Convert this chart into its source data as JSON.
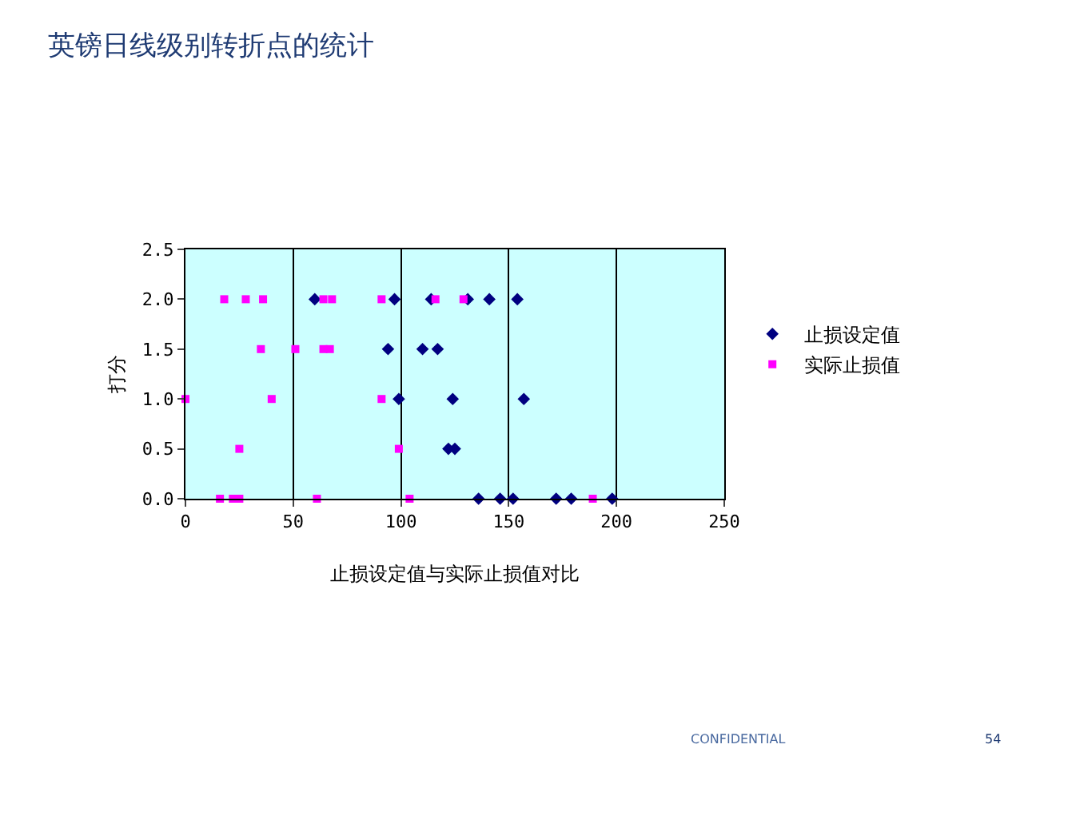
{
  "chart_data": {
    "type": "scatter",
    "title": "英镑日线级别转折点的统计",
    "xlabel": "止损设定值与实际止损值对比",
    "ylabel": "打分",
    "series": [
      {
        "name": "止损设定值",
        "color": "#000080",
        "marker": "diamond",
        "x": [
          60,
          97,
          114,
          131,
          141,
          154,
          94,
          110,
          117,
          99,
          124,
          157,
          122,
          125,
          136,
          146,
          152,
          172,
          179,
          198
        ],
        "values": [
          2,
          2,
          2,
          2,
          2,
          2,
          1.5,
          1.5,
          1.5,
          1,
          1,
          1,
          0.5,
          0.5,
          0,
          0,
          0,
          0,
          0,
          0
        ]
      },
      {
        "name": "实际止损值",
        "color": "#ff00ff",
        "marker": "square",
        "x": [
          18,
          28,
          36,
          64,
          68,
          91,
          116,
          129,
          35,
          51,
          64,
          67,
          0,
          40,
          91,
          25,
          99,
          16,
          22,
          25,
          61,
          104,
          189
        ],
        "values": [
          2,
          2,
          2,
          2,
          2,
          2,
          2,
          2,
          1.5,
          1.5,
          1.5,
          1.5,
          1,
          1,
          1,
          0.5,
          0.5,
          0,
          0,
          0,
          0,
          0,
          0
        ]
      }
    ],
    "xlim": [
      0,
      250
    ],
    "ylim": [
      0,
      2.5
    ],
    "xticks": [
      0,
      50,
      100,
      150,
      200,
      250
    ],
    "yticks": [
      {
        "value": 0,
        "label": "0.0"
      },
      {
        "value": 0.5,
        "label": "0.5"
      },
      {
        "value": 1,
        "label": "1.0"
      },
      {
        "value": 1.5,
        "label": "1.5"
      },
      {
        "value": 2,
        "label": "2.0"
      },
      {
        "value": 2.5,
        "label": "2.5"
      }
    ],
    "grid": "x",
    "legend": "right",
    "annotations": [
      "CONFIDENTIAL",
      "54"
    ]
  }
}
